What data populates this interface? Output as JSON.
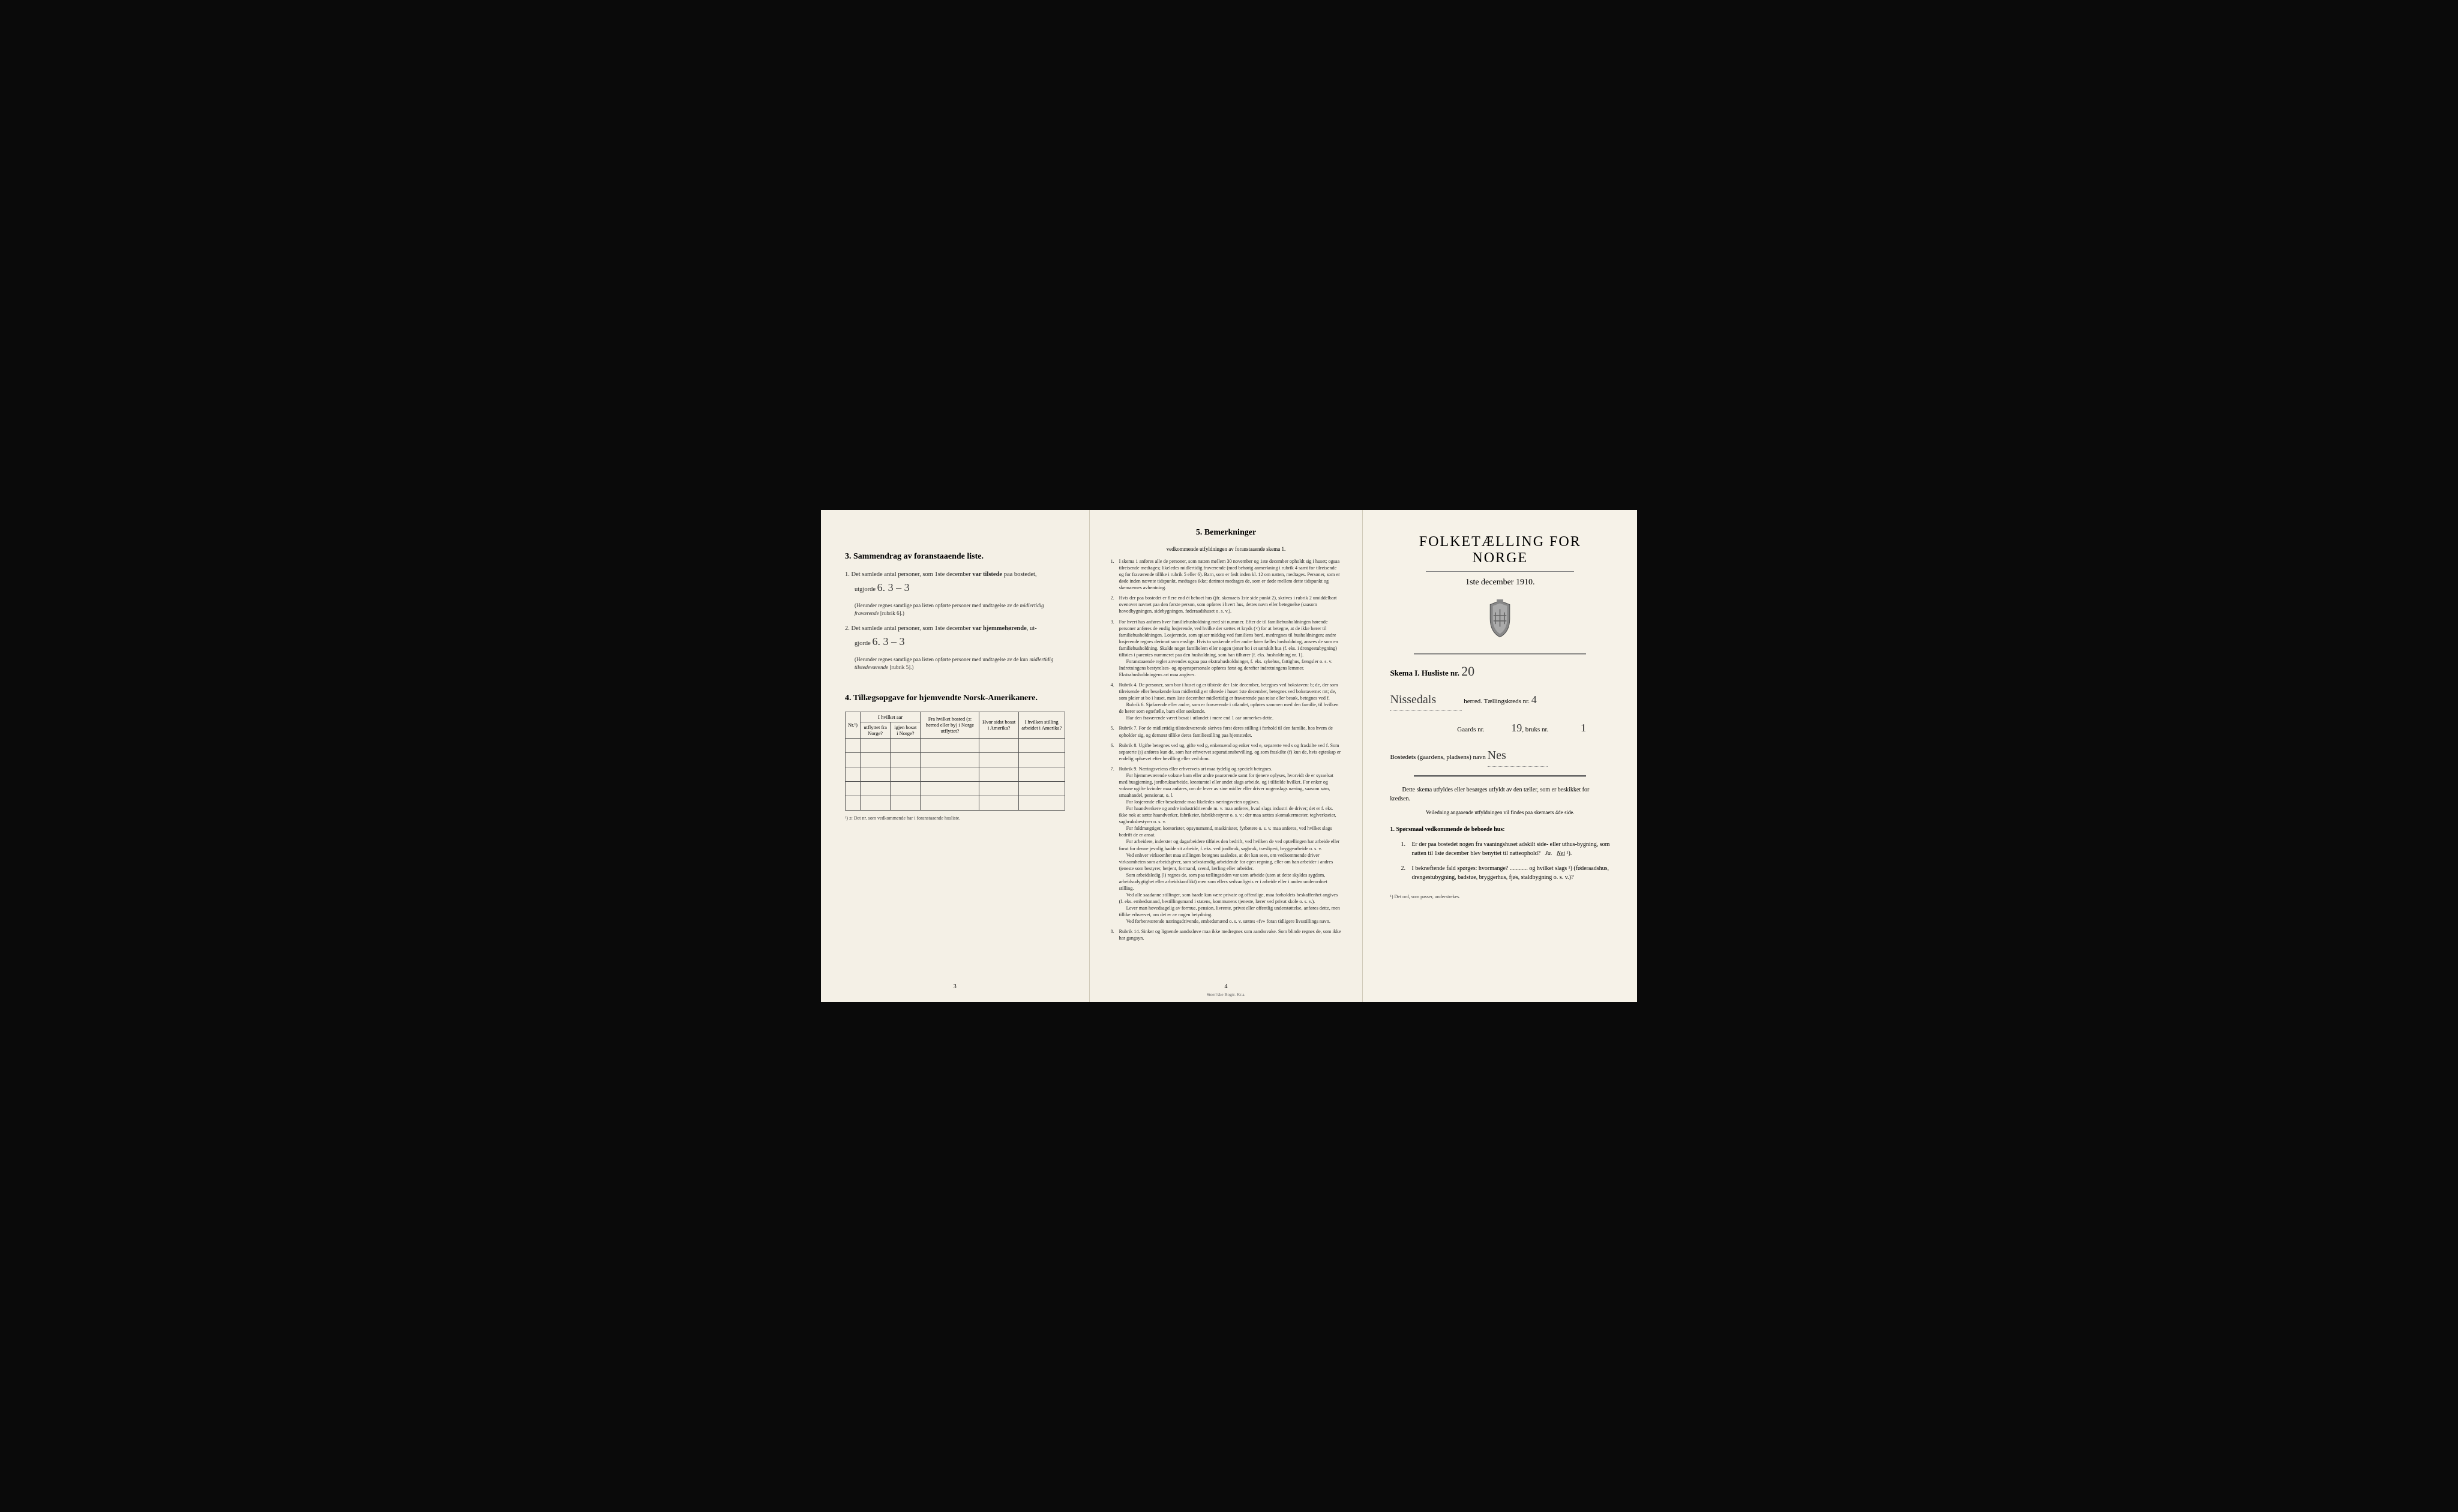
{
  "left": {
    "section3": {
      "heading": "3.   Sammendrag av foranstaaende liste.",
      "item1_prefix": "1.  Det samlede antal personer, som 1ste december ",
      "item1_bold": "var tilstede",
      "item1_suffix": " paa bostedet,",
      "item1_line2": "utgjorde ",
      "item1_value": "6.   3 – 3",
      "item1_note": "(Herunder regnes samtlige paa listen opførte personer med undtagelse av de ",
      "item1_note_italic": "midlertidig fraværende",
      "item1_note_suffix": " [rubrik 6].)",
      "item2_prefix": "2.  Det samlede antal personer, som 1ste december ",
      "item2_bold": "var hjemmehørende",
      "item2_suffix": ", ut-",
      "item2_line2": "gjorde ",
      "item2_value": "6.   3 – 3",
      "item2_note": "(Herunder regnes samtlige paa listen opførte personer med undtagelse av de kun ",
      "item2_note_italic": "midlertidig tilstedeværende",
      "item2_note_suffix": " [rubrik 5].)"
    },
    "section4": {
      "heading": "4.  Tillægsopgave for hjemvendte Norsk-Amerikanere.",
      "cols": {
        "c1": "Nr.¹)",
        "c2_top": "I hvilket aar",
        "c2a": "utflyttet fra Norge?",
        "c2b": "igjen bosat i Norge?",
        "c3": "Fra hvilket bosted (ɔ: herred eller by) i Norge utflyttet?",
        "c4": "Hvor sidst bosat i Amerika?",
        "c5": "I hvilken stilling arbeidet i Amerika?"
      },
      "footnote": "¹) ɔ: Det nr. som vedkommende har i foranstaaende husliste."
    },
    "page_num": "3"
  },
  "center": {
    "heading": "5.   Bemerkninger",
    "subheading": "vedkommende utfyldningen av foranstaaende skema 1.",
    "items": [
      "I skema 1 anføres alle de personer, som natten mellem 30 november og 1ste december opholdt sig i huset; ogsaa tilreisende medtages; likeledes midlertidig fraværende (med behørig anmerkning i rubrik 4 samt for tilreisende og for fraværende tillike i rubrik 5 eller 6). Barn, som er født inden kl. 12 om natten, medtages. Personer, som er døde inden nævnte tidspunkt, medtages ikke; derimot medtages de, som er døde mellem dette tidspunkt og skemaernes avhentning.",
      "Hvis der paa bostedet er flere end ét beboet hus (jfr. skemaets 1ste side punkt 2), skrives i rubrik 2 umiddelbart ovenover navnet paa den første person, som opføres i hvert hus, dettes navn eller betegnelse (saasom hovedbygningen, sidebygningen, føderaadshuset o. s. v.).",
      "For hvert hus anføres hver familiehusholdning med sit nummer. Efter de til familiehusholdningen hørende personer anføres de enslig losjerende, ved hvilke der sættes et kryds (×) for at betegne, at de ikke hører til familiehusholdningen. Losjerende, som spiser middag ved familiens bord, medregnes til husholdningen; andre losjerende regnes derimot som enslige. Hvis to søskende eller andre fører fælles husholdning, ansees de som en familiehusholdning. Skulde noget familielem eller nogen tjener bo i et særskilt hus (f. eks. i drengestubygning) tilføies i parentes nummeret paa den husholdning, som han tilhører (f. eks. husholdning nr. 1).\nForanstaaende regler anvendes ogsaa paa ekstrahusholdninger, f. eks. sykehus, fattighus, fængsler o. s. v. Indretningens bestyrelses- og opsynspersonale opføres først og derefter indretningens lemmer. Ekstrahusholdningens art maa angives.",
      "Rubrik 4. De personer, som bor i huset og er tilstede der 1ste december, betegnes ved bokstaven: b; de, der som tilreisende eller besøkende kun midlertidig er tilstede i huset 1ste december, betegnes ved bokstaverne: mt; de, som pleier at bo i huset, men 1ste december midlertidig er fraværende paa reise eller besøk, betegnes ved f.\nRubrik 6. Sjøfarende eller andre, som er fraværende i utlandet, opføres sammen med den familie, til hvilken de hører som egtefælle, barn eller søskende.\nHar den fraværende været bosat i utlandet i mere end 1 aar anmerkes dette.",
      "Rubrik 7. For de midlertidig tilstedeværende skrives først deres stilling i forhold til den familie, hos hvem de opholder sig, og dernæst tillike deres familiestilling paa hjemstedet.",
      "Rubrik 8. Ugifte betegnes ved ug, gifte ved g, enkemænd og enker ved e, separerte ved s og fraskilte ved f. Som separerte (s) anføres kun de, som har erhvervet separationsbevilling, og som fraskilte (f) kun de, hvis egteskap er endelig ophævet efter bevilling eller ved dom.",
      "Rubrik 9. Næringsveiens eller erhvervets art maa tydelig og specielt betegnes.\nFor hjemmeværende voksne barn eller andre paarørende samt for tjenere oplyses, hvorvidt de er sysselsat med husgjerning, jordbruksarbeide, kreaturstel eller andet slags arbeide, og i tilfælde hvilket. For enker og voksne ugifte kvinder maa anføres, om de lever av sine midler eller driver nogenslags næring, saasom søm, smaahandel, pensionat, o. l.\nFor losjerende eller besøkende maa likeledes næringsveien opgives.\nFor haandverkere og andre industridrivende m. v. maa anføres, hvad slags industri de driver; det er f. eks. ikke nok at sætte haandverker, fabrikeier, fabrikbestyrer o. s. v.; der maa sættes skomakermester, teglverkseier, sagbruksbestyrer o. s. v.\nFor fuldmægtiger, kontorister, opsynsmænd, maskinister, fyrbøtere o. s. v. maa anføres, ved hvilket slags bedrift de er ansat.\nFor arbeidere, inderster og dagarbeidere tilføies den bedrift, ved hvilken de ved optællingen har arbeide eller forut for denne jevnlig hadde sit arbeide, f. eks. ved jordbruk, sagbruk, træsliperi, bryggearbeide o. s. v.\nVed enhver virksomhet maa stillingen betegnes saaledes, at det kan sees, om vedkommende driver virksomheten som arbeidsgiver, som selvstændig arbeidende for egen regning, eller om han arbeider i andres tjeneste som bestyrer, betjent, formand, svend, lærling eller arbeider.\nSom arbeidsledig (l) regnes de, som paa tællingstiden var uten arbeide (uten at dette skyldes sygdom, arbeidsudygtighet eller arbeidskonflikt) men som ellers sedvanligvis er i arbeide eller i anden underordnet stilling.\nVed alle saadanne stillinger, som baade kan være private og offentlige, maa forholdets beskaffenhet angives (f. eks. embedsmand, bestillingsmand i statens, kommunens tjeneste, lærer ved privat skole o. s. v.).\nLever man hovedsagelig av formue, pension, livrente, privat eller offentlig understøttelse, anføres dette, men tillike erhvervet, om det er av nogen betydning.\nVed forhenværende næringsdrivende, embedsmænd o. s. v. sættes «fv» foran tidligere livsstillings navn.",
      "Rubrik 14. Sinker og lignende aandssløve maa ikke medregnes som aandssvake. Som blinde regnes de, som ikke har gangsyn."
    ],
    "page_num": "4",
    "imprint": "Steen'ske Bogtr.  Kr.a."
  },
  "right": {
    "title": "FOLKETÆLLING FOR NORGE",
    "date": "1ste december 1910.",
    "skema_label": "Skema I.   Husliste nr.",
    "husliste_nr": "20",
    "herred_value": "Nissedals",
    "herred_label": "herred.  Tællingskreds nr.",
    "kreds_nr": "4",
    "gaards_label": "Gaards nr.",
    "gaards_nr": "19",
    "bruks_label": "bruks nr.",
    "bruks_nr": "1",
    "bosted_label": "Bostedets (gaardens, pladsens) navn",
    "bosted_value": "Nes",
    "body1": "Dette skema utfyldes eller besørges utfyldt av den tæller, som er beskikket for kredsen.",
    "body2": "Veiledning angaaende utfyldningen vil findes paa skemaets 4de side.",
    "q_heading": "1. Spørsmaal vedkommende de beboede hus:",
    "q1": "Er der paa bostedet nogen fra vaaningshuset adskilt side- eller uthus-bygning, som natten til 1ste december blev benyttet til natteophold?   Ja.   Nei ¹).",
    "q1_answer_underlined": "Nei",
    "q2": "I bekræftende fald spørges: hvormange? ............ og hvilket slags ¹) (føderaadshus, drengestubygning, badstue, bryggerhus, fjøs, staldbygning o. s. v.)?",
    "footnote": "¹) Det ord, som passer, understrekes."
  },
  "colors": {
    "paper": "#f4f0e6",
    "paper_right": "#f6f2e8",
    "text": "#2a2a2a",
    "border": "#555",
    "bg": "#0a0a0a",
    "handwriting": "#3a3a3a"
  }
}
